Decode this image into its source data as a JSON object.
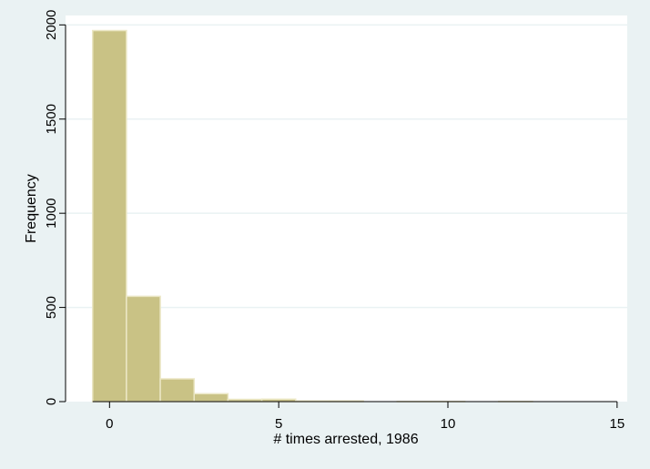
{
  "chart_data": {
    "type": "bar",
    "xlabel": "# times arrested, 1986",
    "ylabel": "Frequency",
    "xlim": [
      -1.3,
      15.3
    ],
    "ylim": [
      0,
      2050
    ],
    "x_ticks": [
      0,
      5,
      10,
      15
    ],
    "y_ticks": [
      0,
      500,
      1000,
      1500,
      2000
    ],
    "bin_width": 1,
    "grid": true,
    "colors": {
      "bar_fill": "#c9c285",
      "bar_stroke": "#ebe7c5",
      "plot_background": "#ffffff",
      "grid": "#eaf2f3",
      "outer_background": "#eaf2f3"
    },
    "bins": [
      {
        "x": 0,
        "value": 1970
      },
      {
        "x": 1,
        "value": 559
      },
      {
        "x": 2,
        "value": 121
      },
      {
        "x": 3,
        "value": 42
      },
      {
        "x": 4,
        "value": 12
      },
      {
        "x": 5,
        "value": 13
      },
      {
        "x": 6,
        "value": 4
      },
      {
        "x": 7,
        "value": 4
      },
      {
        "x": 8,
        "value": 0
      },
      {
        "x": 9,
        "value": 1
      },
      {
        "x": 10,
        "value": 1
      },
      {
        "x": 11,
        "value": 0
      },
      {
        "x": 12,
        "value": 1
      }
    ]
  }
}
